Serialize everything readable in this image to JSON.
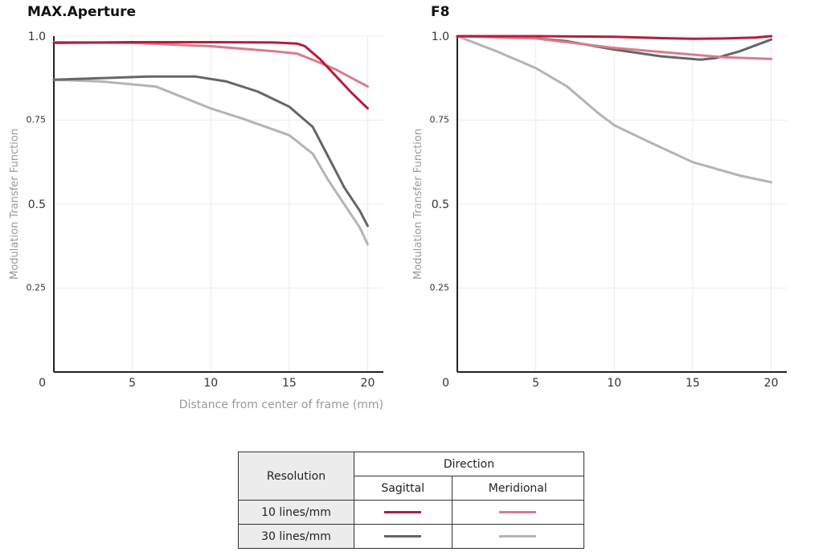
{
  "charts": [
    {
      "title": "MAX.Aperture",
      "xlabel": "Distance from center of frame (mm)",
      "ylabel": "Modulation Transfer Function"
    },
    {
      "title": "F8",
      "xlabel": "",
      "ylabel": "Modulation Transfer Function"
    }
  ],
  "chart_data": [
    {
      "type": "line",
      "title": "MAX.Aperture",
      "xlabel": "Distance from center of frame (mm)",
      "ylabel": "Modulation Transfer Function",
      "xlim": [
        0,
        21
      ],
      "ylim": [
        0,
        1.0
      ],
      "xticks": [
        "5",
        "10",
        "15",
        "20"
      ],
      "yticks": [
        "0",
        "0.25",
        "0.5",
        "0.75",
        "1.0"
      ],
      "series": [
        {
          "resolution": "10 lines/mm",
          "direction": "Sagittal",
          "color": "#b41e3c",
          "x": [
            0,
            5,
            10,
            14,
            15.5,
            16,
            17,
            18,
            19,
            20
          ],
          "y": [
            0.98,
            0.982,
            0.982,
            0.981,
            0.978,
            0.97,
            0.93,
            0.88,
            0.83,
            0.785
          ]
        },
        {
          "resolution": "10 lines/mm",
          "direction": "Meridional",
          "color": "#db7b8f",
          "x": [
            0,
            5,
            10,
            14,
            15.5,
            17,
            18,
            19,
            20
          ],
          "y": [
            0.982,
            0.98,
            0.97,
            0.955,
            0.948,
            0.92,
            0.9,
            0.875,
            0.85
          ]
        },
        {
          "resolution": "30 lines/mm",
          "direction": "Sagittal",
          "color": "#666666",
          "x": [
            0,
            3,
            6,
            9,
            11,
            13,
            15,
            16.5,
            17.5,
            18.5,
            19.5,
            20
          ],
          "y": [
            0.87,
            0.875,
            0.88,
            0.88,
            0.865,
            0.835,
            0.79,
            0.73,
            0.64,
            0.55,
            0.48,
            0.435
          ]
        },
        {
          "resolution": "30 lines/mm",
          "direction": "Meridional",
          "color": "#b4b4b4",
          "x": [
            0,
            3,
            6.5,
            10,
            12,
            15,
            16.5,
            17.5,
            18.5,
            19.5,
            20
          ],
          "y": [
            0.87,
            0.865,
            0.85,
            0.785,
            0.755,
            0.705,
            0.65,
            0.57,
            0.5,
            0.43,
            0.38
          ]
        }
      ]
    },
    {
      "type": "line",
      "title": "F8",
      "xlabel": "",
      "ylabel": "Modulation Transfer Function",
      "xlim": [
        0,
        21
      ],
      "ylim": [
        0,
        1.0
      ],
      "xticks": [
        "5",
        "10",
        "15",
        "20"
      ],
      "yticks": [
        "0",
        "0.25",
        "0.5",
        "0.75",
        "1.0"
      ],
      "series": [
        {
          "resolution": "10 lines/mm",
          "direction": "Sagittal",
          "color": "#b41e3c",
          "x": [
            0,
            5,
            10,
            13,
            15,
            17,
            19,
            20
          ],
          "y": [
            1.0,
            1.0,
            0.998,
            0.994,
            0.992,
            0.993,
            0.996,
            1.0
          ]
        },
        {
          "resolution": "10 lines/mm",
          "direction": "Meridional",
          "color": "#db7b8f",
          "x": [
            0,
            5,
            10,
            15,
            17,
            20
          ],
          "y": [
            1.0,
            0.993,
            0.965,
            0.945,
            0.937,
            0.932
          ]
        },
        {
          "resolution": "30 lines/mm",
          "direction": "Sagittal",
          "color": "#666666",
          "x": [
            0,
            4,
            7,
            10,
            13,
            15.5,
            16.5,
            18,
            20
          ],
          "y": [
            1.0,
            0.998,
            0.985,
            0.96,
            0.94,
            0.93,
            0.935,
            0.955,
            0.99
          ]
        },
        {
          "resolution": "30 lines/mm",
          "direction": "Meridional",
          "color": "#b4b4b4",
          "x": [
            0,
            2.5,
            5,
            7,
            9,
            10,
            12,
            15,
            18,
            20
          ],
          "y": [
            1.0,
            0.955,
            0.905,
            0.85,
            0.77,
            0.735,
            0.69,
            0.625,
            0.585,
            0.565
          ]
        }
      ]
    }
  ],
  "legend": {
    "resolution_header": "Resolution",
    "direction_header": "Direction",
    "sagittal_label": "Sagittal",
    "meridional_label": "Meridional",
    "rows": [
      {
        "label": "10 lines/mm",
        "sagittal_color": "#b41e3c",
        "meridional_color": "#db7b8f"
      },
      {
        "label": "30 lines/mm",
        "sagittal_color": "#666666",
        "meridional_color": "#b4b4b4"
      }
    ]
  }
}
